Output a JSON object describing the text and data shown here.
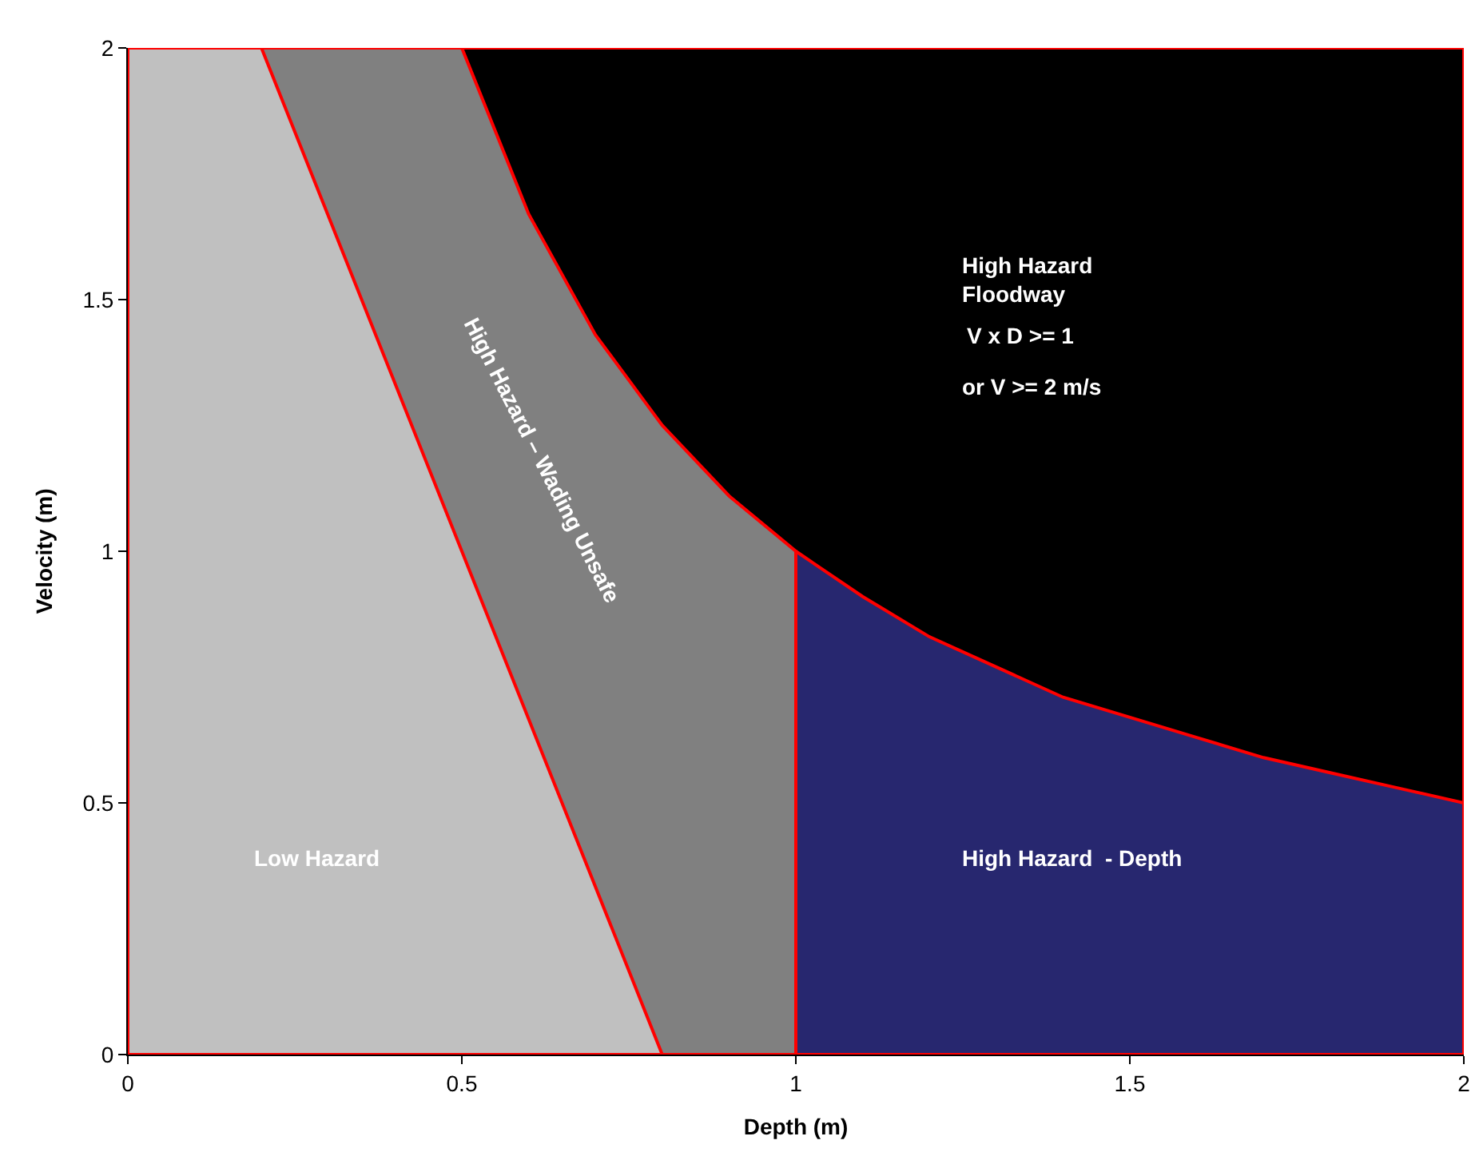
{
  "chart_data": {
    "type": "area",
    "xlabel": "Depth (m)",
    "ylabel": "Velocity (m)",
    "xlim": [
      0,
      2
    ],
    "ylim": [
      0,
      2
    ],
    "xticks": [
      0,
      0.5,
      1,
      1.5,
      2
    ],
    "yticks": [
      0,
      0.5,
      1,
      1.5,
      2
    ],
    "series": [
      {
        "name": "High Hazard\nFloodway",
        "color": "#000000",
        "x": [
          0.5,
          2.0
        ],
        "values": [
          2,
          2
        ]
      },
      {
        "name": "High Hazard – Wading Unsafe",
        "color": "#808080",
        "x": [
          0.2,
          0.5,
          0.6,
          0.7,
          0.8,
          0.9,
          1.0,
          1.0
        ],
        "values": [
          2,
          2,
          1.67,
          1.43,
          1.25,
          1.11,
          1.0,
          0
        ]
      },
      {
        "name": "Low Hazard",
        "color": "#c0c0c0",
        "x": [
          0,
          0.2,
          0.8
        ],
        "values": [
          2,
          2,
          0
        ]
      },
      {
        "name": "High Hazard  - Depth",
        "color": "#27276f",
        "x": [
          1.0,
          1.1,
          1.2,
          1.3,
          1.4,
          1.5,
          1.6,
          1.7,
          1.8,
          1.9,
          2.0
        ],
        "values": [
          1.0,
          0.91,
          0.83,
          0.77,
          0.71,
          0.67,
          0.63,
          0.59,
          0.56,
          0.53,
          0.5
        ]
      }
    ],
    "annotations": [
      "V x D >= 1",
      "or V >= 2 m/s"
    ]
  }
}
